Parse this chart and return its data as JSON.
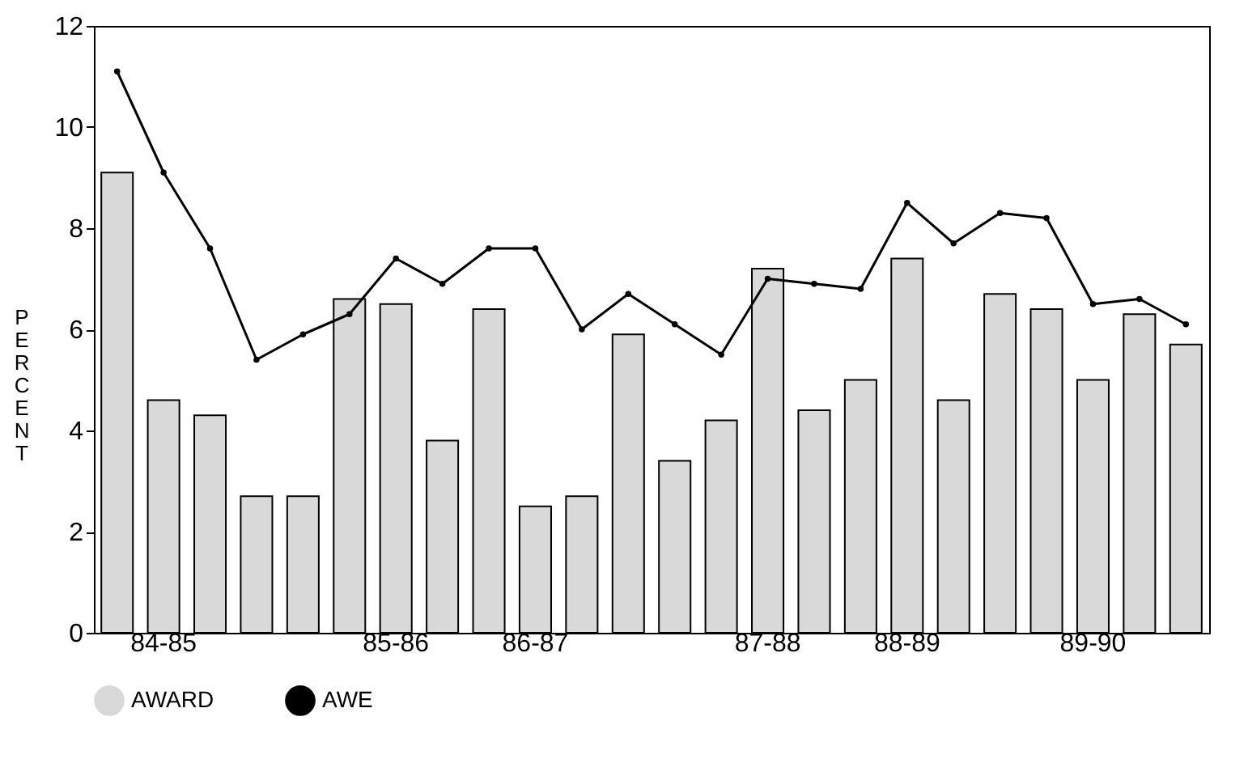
{
  "chart_data": {
    "type": "bar",
    "ylabel": "PER CENT",
    "categories": [
      null,
      "84-85",
      null,
      null,
      null,
      null,
      "85-86",
      null,
      null,
      "86-87",
      null,
      null,
      null,
      null,
      "87-88",
      null,
      null,
      "88-89",
      null,
      null,
      null,
      "89-90",
      null,
      null
    ],
    "series": [
      {
        "name": "AWARD",
        "color": "#d9d9d9",
        "values": [
          9.1,
          4.6,
          4.3,
          2.7,
          2.7,
          6.6,
          6.5,
          3.8,
          6.4,
          2.5,
          2.7,
          5.9,
          3.4,
          4.2,
          7.2,
          4.4,
          5.0,
          7.4,
          4.6,
          6.7,
          6.4,
          5.0,
          6.3,
          5.7
        ]
      },
      {
        "name": "AWE",
        "type": "line",
        "color": "#000000",
        "values": [
          11.1,
          9.1,
          7.6,
          5.4,
          5.9,
          6.3,
          7.4,
          6.9,
          7.6,
          7.6,
          6.0,
          6.7,
          6.1,
          5.5,
          7.0,
          6.9,
          6.8,
          8.5,
          7.7,
          8.3,
          8.2,
          6.5,
          6.6,
          6.1
        ]
      }
    ],
    "ylim": [
      0,
      12
    ],
    "yticks": [
      0,
      2,
      4,
      6,
      8,
      10,
      12
    ],
    "grid": false,
    "legend": "bottom",
    "marker": "circle",
    "line_style": "solid"
  }
}
